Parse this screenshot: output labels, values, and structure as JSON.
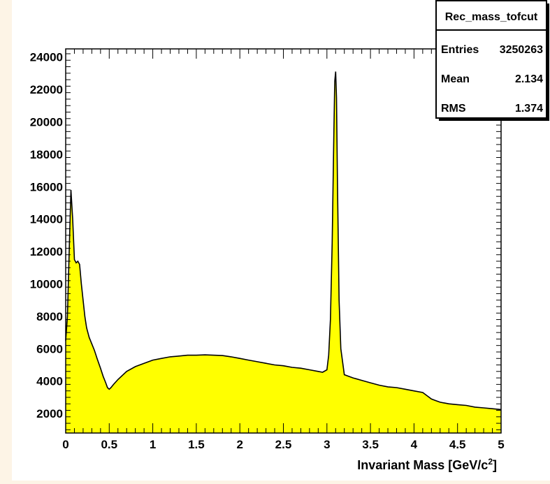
{
  "chart_data": {
    "type": "histogram",
    "xlabel": "Invariant Mass [GeV/c",
    "xlabel_superscript": "2",
    "xlabel_suffix": "]",
    "xlim": [
      0,
      5
    ],
    "ylim": [
      800,
      24500
    ],
    "x_ticks": [
      "0",
      "0.5",
      "1",
      "1.5",
      "2",
      "2.5",
      "3",
      "3.5",
      "4",
      "4.5",
      "5"
    ],
    "y_ticks": [
      "2000",
      "4000",
      "6000",
      "8000",
      "10000",
      "12000",
      "14000",
      "16000",
      "18000",
      "20000",
      "22000",
      "24000"
    ],
    "fill_color": "#ffff00",
    "line_color": "#000000",
    "legend_placement": "top-right",
    "stats_box": {
      "title": "Rec_mass_tofcut",
      "rows": [
        {
          "label": "Entries",
          "value": "3250263"
        },
        {
          "label": "Mean",
          "value": "2.134"
        },
        {
          "label": "RMS",
          "value": "1.374"
        }
      ]
    },
    "series": [
      {
        "x": [
          0.0,
          0.02,
          0.04,
          0.06,
          0.08,
          0.1,
          0.12,
          0.14,
          0.16,
          0.18,
          0.2,
          0.22,
          0.24,
          0.27,
          0.3,
          0.33,
          0.36,
          0.4,
          0.43,
          0.46,
          0.48,
          0.5,
          0.52,
          0.55,
          0.6,
          0.7,
          0.8,
          0.9,
          1.0,
          1.1,
          1.2,
          1.3,
          1.4,
          1.5,
          1.6,
          1.7,
          1.8,
          1.9,
          2.0,
          2.1,
          2.2,
          2.3,
          2.4,
          2.5,
          2.6,
          2.7,
          2.8,
          2.9,
          2.95,
          3.0,
          3.02,
          3.04,
          3.06,
          3.08,
          3.09,
          3.1,
          3.11,
          3.12,
          3.14,
          3.16,
          3.2,
          3.3,
          3.4,
          3.5,
          3.6,
          3.7,
          3.8,
          3.9,
          4.0,
          4.1,
          4.15,
          4.2,
          4.25,
          4.3,
          4.4,
          4.5,
          4.6,
          4.7,
          4.8,
          4.9,
          5.0
        ],
        "y": [
          6500,
          8000,
          12000,
          15800,
          14000,
          11500,
          11300,
          11400,
          11200,
          10000,
          9000,
          8000,
          7300,
          6700,
          6300,
          5900,
          5400,
          4800,
          4300,
          3900,
          3600,
          3500,
          3600,
          3800,
          4100,
          4600,
          4900,
          5100,
          5300,
          5400,
          5500,
          5550,
          5600,
          5600,
          5620,
          5600,
          5580,
          5500,
          5400,
          5300,
          5200,
          5100,
          5000,
          4950,
          4850,
          4800,
          4700,
          4600,
          4550,
          4700,
          5600,
          7800,
          12500,
          19500,
          22500,
          23100,
          21500,
          16500,
          9000,
          6000,
          4400,
          4200,
          4050,
          3900,
          3750,
          3650,
          3600,
          3500,
          3400,
          3300,
          3100,
          2900,
          2800,
          2700,
          2600,
          2550,
          2500,
          2400,
          2350,
          2300,
          2250
        ]
      }
    ]
  }
}
